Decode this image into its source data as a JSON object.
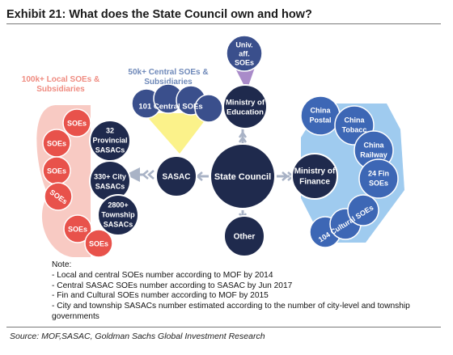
{
  "title": "Exhibit 21: What does the State Council own and how?",
  "groups": {
    "local": [
      "100k+ Local SOEs &",
      "Subsidiaries"
    ],
    "central": [
      "50k+ Central SOEs &",
      "Subsidiaries"
    ]
  },
  "nodes": {
    "state_council": "State Council",
    "sasac": "SASAC",
    "moe": [
      "Ministry of",
      "Education"
    ],
    "mof": [
      "Ministry of",
      "Finance"
    ],
    "other": "Other",
    "univ": [
      "Univ.",
      "aff.",
      "SOEs"
    ],
    "central_soes": "101 Central SOEs",
    "provincial": [
      "32",
      "Provincial",
      "SASACs"
    ],
    "city": [
      "330+ City",
      "SASACs"
    ],
    "township": [
      "2800+",
      "Township",
      "SASACs"
    ],
    "soes": "SOEs",
    "china_postal": [
      "China",
      "Postal"
    ],
    "china_tobacc": [
      "China",
      "Tobacc"
    ],
    "china_railway": [
      "China",
      "Railway"
    ],
    "fin_soes": [
      "24 Fin",
      "SOEs"
    ],
    "cultural_soes": "104 Cultural SOEs"
  },
  "colors": {
    "navy": "#1f2a4d",
    "node_border": "#ffffff",
    "local_fill": "#f7c4bc",
    "local_soe": "#e8524b",
    "local_label": "#ef8b80",
    "central_fill": "#fbf28a",
    "central_soe": "#3a4f8c",
    "central_label": "#6f89b9",
    "mof_fill": "#9fcbef",
    "mof_soe": "#3d67b5",
    "univ_fill": "#a98bc9",
    "arrow": "#a9b3c6"
  },
  "notes": {
    "heading": "Note:",
    "lines": [
      "- Local and central SOEs number according to MOF by 2014",
      "- Central SASAC SOEs number according to SASAC by Jun 2017",
      "- Fin and Cultural SOEs number according to MOF by 2015",
      "- City and township SASACs number estimated according to the number of city-level and township governments"
    ]
  },
  "source": "Source: MOF,SASAC, Goldman Sachs Global Investment Research"
}
